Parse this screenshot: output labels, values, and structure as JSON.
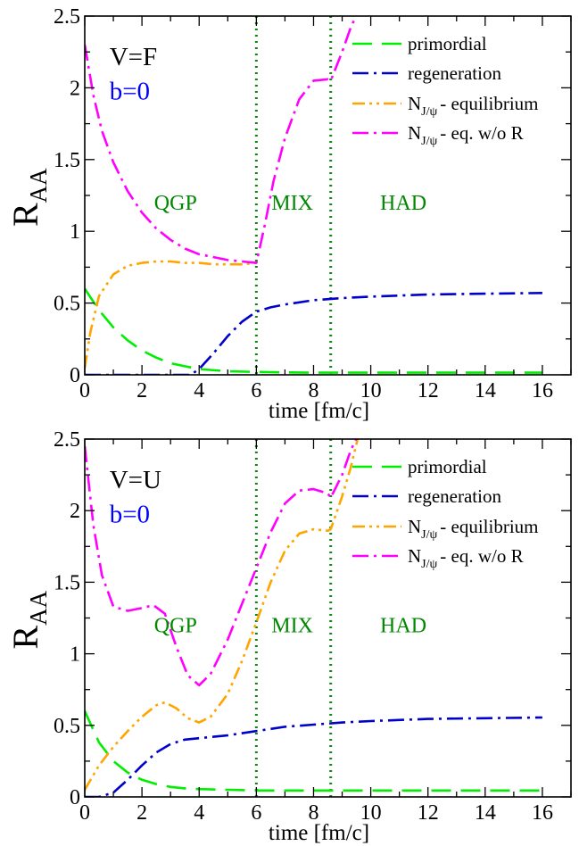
{
  "chart_data": [
    {
      "type": "line",
      "xlabel": "time [fm/c]",
      "ylabel": "R",
      "ylabel_sub": "AA",
      "xlim": [
        0,
        17
      ],
      "ylim": [
        0,
        2.5
      ],
      "xticks": [
        0,
        2,
        4,
        6,
        8,
        10,
        12,
        14,
        16
      ],
      "xtick_labels": [
        "0",
        "2",
        "4",
        "6",
        "8",
        "10",
        "12",
        "14",
        "16"
      ],
      "yticks": [
        0,
        0.5,
        1,
        1.5,
        2,
        2.5
      ],
      "ytick_labels": [
        "0",
        "0.5",
        "1",
        "1.5",
        "2",
        "2.5"
      ],
      "grid": false,
      "legend_position": "top-right",
      "annotations": [
        {
          "text": "V=F",
          "x": 1.8,
          "y": 2.22,
          "color": "#000000"
        },
        {
          "text": "b=0",
          "x": 1.8,
          "y": 1.98,
          "color": "#0000ff"
        },
        {
          "text": "QGP",
          "x": 3.3,
          "y": 1.2,
          "color": "#008800"
        },
        {
          "text": "MIX",
          "x": 7.4,
          "y": 1.2,
          "color": "#008800"
        },
        {
          "text": "HAD",
          "x": 11.2,
          "y": 1.2,
          "color": "#008800"
        }
      ],
      "vlines": [
        6.0,
        8.6
      ],
      "series": [
        {
          "name": "primordial",
          "color": "#00ee00",
          "dash": "long-dash",
          "x": [
            0,
            0.5,
            1,
            1.5,
            2,
            2.5,
            3,
            3.5,
            4,
            5,
            6,
            7,
            8,
            10,
            12,
            14,
            16
          ],
          "y": [
            0.6,
            0.45,
            0.33,
            0.24,
            0.17,
            0.12,
            0.08,
            0.06,
            0.04,
            0.025,
            0.02,
            0.017,
            0.015,
            0.015,
            0.015,
            0.015,
            0.015
          ]
        },
        {
          "name": "regeneration",
          "color": "#0000cc",
          "dash": "dash-dot",
          "x": [
            0,
            1,
            2,
            3,
            3.7,
            4,
            4.5,
            5,
            5.5,
            6,
            6.5,
            7,
            8,
            9,
            10,
            12,
            14,
            16
          ],
          "y": [
            0,
            0,
            0,
            0,
            0,
            0.04,
            0.15,
            0.27,
            0.37,
            0.44,
            0.47,
            0.49,
            0.52,
            0.535,
            0.545,
            0.56,
            0.565,
            0.57
          ]
        },
        {
          "name": "N",
          "legend_sub": "J/ψ",
          "legend_suffix": "- equilibrium",
          "color": "#ffa500",
          "dash": "dash-dot-dot",
          "x": [
            0,
            0.2,
            0.5,
            1,
            1.5,
            2,
            2.5,
            3,
            3.5,
            4,
            4.5,
            5,
            5.5,
            6
          ],
          "y": [
            0.05,
            0.3,
            0.55,
            0.7,
            0.76,
            0.78,
            0.79,
            0.79,
            0.78,
            0.78,
            0.77,
            0.77,
            0.77,
            0.78
          ]
        },
        {
          "name": "N",
          "legend_sub": "J/ψ",
          "legend_suffix": "- eq. w/o R",
          "color": "#ff00ff",
          "dash": "dash-dot",
          "x": [
            0,
            0.3,
            0.6,
            1,
            1.5,
            2,
            2.5,
            3,
            3.5,
            4,
            4.5,
            5,
            5.5,
            6,
            6.3,
            6.6,
            7,
            7.5,
            8,
            8.5,
            8.6,
            9,
            9.3,
            9.6
          ],
          "y": [
            2.3,
            1.95,
            1.7,
            1.48,
            1.28,
            1.13,
            1.02,
            0.94,
            0.88,
            0.84,
            0.82,
            0.8,
            0.79,
            0.78,
            1.05,
            1.35,
            1.65,
            1.92,
            2.05,
            2.06,
            2.05,
            2.25,
            2.42,
            2.55
          ]
        }
      ]
    },
    {
      "type": "line",
      "xlabel": "time [fm/c]",
      "ylabel": "R",
      "ylabel_sub": "AA",
      "xlim": [
        0,
        17
      ],
      "ylim": [
        0,
        2.5
      ],
      "xticks": [
        0,
        2,
        4,
        6,
        8,
        10,
        12,
        14,
        16
      ],
      "xtick_labels": [
        "0",
        "2",
        "4",
        "6",
        "8",
        "10",
        "12",
        "14",
        "16"
      ],
      "yticks": [
        0,
        0.5,
        1,
        1.5,
        2,
        2.5
      ],
      "ytick_labels": [
        "0",
        "0.5",
        "1",
        "1.5",
        "2",
        "2.5"
      ],
      "grid": false,
      "legend_position": "top-right",
      "annotations": [
        {
          "text": "V=U",
          "x": 1.8,
          "y": 2.22,
          "color": "#000000"
        },
        {
          "text": "b=0",
          "x": 1.8,
          "y": 1.98,
          "color": "#0000ff"
        },
        {
          "text": "QGP",
          "x": 3.3,
          "y": 1.2,
          "color": "#008800"
        },
        {
          "text": "MIX",
          "x": 7.4,
          "y": 1.2,
          "color": "#008800"
        },
        {
          "text": "HAD",
          "x": 11.2,
          "y": 1.2,
          "color": "#008800"
        }
      ],
      "vlines": [
        6.0,
        8.6
      ],
      "series": [
        {
          "name": "primordial",
          "color": "#00ee00",
          "dash": "long-dash",
          "x": [
            0,
            0.5,
            1,
            1.5,
            2,
            2.5,
            3,
            3.5,
            4,
            5,
            6,
            8,
            10,
            12,
            14,
            16
          ],
          "y": [
            0.6,
            0.38,
            0.25,
            0.17,
            0.12,
            0.09,
            0.07,
            0.06,
            0.055,
            0.05,
            0.045,
            0.045,
            0.045,
            0.045,
            0.045,
            0.045
          ]
        },
        {
          "name": "regeneration",
          "color": "#0000cc",
          "dash": "dash-dot",
          "x": [
            0,
            0.5,
            1,
            1.5,
            2,
            2.5,
            3,
            3.5,
            4,
            5,
            6,
            7,
            8,
            9,
            10,
            12,
            14,
            16
          ],
          "y": [
            0,
            0,
            0.03,
            0.12,
            0.22,
            0.31,
            0.37,
            0.4,
            0.41,
            0.43,
            0.46,
            0.49,
            0.505,
            0.52,
            0.53,
            0.545,
            0.55,
            0.555
          ]
        },
        {
          "name": "N",
          "legend_sub": "J/ψ",
          "legend_suffix": "- equilibrium",
          "color": "#ffa500",
          "dash": "dash-dot-dot",
          "x": [
            0,
            0.5,
            1,
            1.5,
            2,
            2.5,
            2.8,
            3.2,
            3.6,
            4,
            4.4,
            5,
            5.5,
            6,
            6.5,
            7,
            7.5,
            8,
            8.5,
            8.6,
            9,
            9.3,
            9.6
          ],
          "y": [
            0.05,
            0.22,
            0.35,
            0.46,
            0.56,
            0.64,
            0.66,
            0.62,
            0.55,
            0.52,
            0.56,
            0.72,
            0.95,
            1.22,
            1.5,
            1.72,
            1.84,
            1.87,
            1.86,
            1.87,
            2.1,
            2.3,
            2.55
          ]
        },
        {
          "name": "N",
          "legend_sub": "J/ψ",
          "legend_suffix": "- eq. w/o R",
          "color": "#ff00ff",
          "dash": "dash-dot",
          "x": [
            0,
            0.3,
            0.6,
            1,
            1.5,
            2,
            2.4,
            2.8,
            3.2,
            3.6,
            4,
            4.4,
            5,
            5.5,
            6,
            6.5,
            7,
            7.5,
            8,
            8.5,
            8.6,
            9,
            9.3,
            9.6
          ],
          "y": [
            2.45,
            1.9,
            1.55,
            1.33,
            1.3,
            1.32,
            1.34,
            1.28,
            1.05,
            0.85,
            0.78,
            0.86,
            1.1,
            1.35,
            1.6,
            1.85,
            2.05,
            2.14,
            2.15,
            2.12,
            2.09,
            2.25,
            2.42,
            2.55
          ]
        }
      ]
    }
  ]
}
